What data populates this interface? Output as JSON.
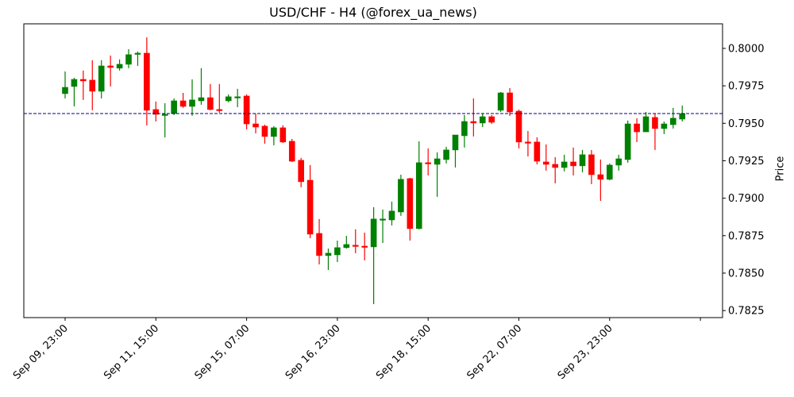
{
  "chart_data": {
    "type": "candlestick",
    "title": "USD/CHF - H4 (@forex_ua_news)",
    "xlabel": "",
    "ylabel": "Price",
    "ylim": [
      0.78203,
      0.80164
    ],
    "y_ticks": [
      "0.7825",
      "0.7850",
      "0.7875",
      "0.7900",
      "0.7925",
      "0.7950",
      "0.7975",
      "0.8000"
    ],
    "x_ticks": [
      {
        "index": 0,
        "label": "Sep 09, 23:00"
      },
      {
        "index": 10,
        "label": "Sep 11, 15:00"
      },
      {
        "index": 20,
        "label": "Sep 15, 07:00"
      },
      {
        "index": 30,
        "label": "Sep 16, 23:00"
      },
      {
        "index": 40,
        "label": "Sep 18, 15:00"
      },
      {
        "index": 50,
        "label": "Sep 22, 07:00"
      },
      {
        "index": 60,
        "label": "Sep 23, 23:00"
      },
      {
        "index": 70,
        "label": ""
      }
    ],
    "y_axis_side": "right",
    "grid": false,
    "up_color": "#008000",
    "down_color": "#ff0000",
    "reference_line": {
      "value": 0.79565,
      "color": "#000080",
      "style": "dashed"
    },
    "ohlc_fields": [
      "open",
      "high",
      "low",
      "close"
    ],
    "candles": [
      [
        0.79698,
        0.79846,
        0.79666,
        0.7974
      ],
      [
        0.79746,
        0.79804,
        0.79613,
        0.79793
      ],
      [
        0.79793,
        0.79852,
        0.79656,
        0.79783
      ],
      [
        0.79788,
        0.79921,
        0.79587,
        0.79714
      ],
      [
        0.79714,
        0.79921,
        0.79666,
        0.79883
      ],
      [
        0.79883,
        0.79952,
        0.79746,
        0.79873
      ],
      [
        0.79868,
        0.79926,
        0.79852,
        0.79894
      ],
      [
        0.79894,
        0.79995,
        0.79868,
        0.79958
      ],
      [
        0.79963,
        0.79979,
        0.79883,
        0.79968
      ],
      [
        0.79968,
        0.80074,
        0.79486,
        0.79587
      ],
      [
        0.79592,
        0.79645,
        0.79512,
        0.7956
      ],
      [
        0.79555,
        0.79634,
        0.79406,
        0.7956
      ],
      [
        0.79565,
        0.79666,
        0.79555,
        0.7965
      ],
      [
        0.7965,
        0.79703,
        0.79603,
        0.79613
      ],
      [
        0.79613,
        0.79793,
        0.7955,
        0.79656
      ],
      [
        0.7965,
        0.79868,
        0.79624,
        0.79671
      ],
      [
        0.79671,
        0.79762,
        0.79587,
        0.79592
      ],
      [
        0.79592,
        0.79762,
        0.79571,
        0.79587
      ],
      [
        0.7965,
        0.79693,
        0.7964,
        0.79677
      ],
      [
        0.79671,
        0.7973,
        0.79608,
        0.79677
      ],
      [
        0.79682,
        0.79693,
        0.79459,
        0.79496
      ],
      [
        0.79496,
        0.79565,
        0.79433,
        0.79475
      ],
      [
        0.79481,
        0.79491,
        0.79364,
        0.79412
      ],
      [
        0.79412,
        0.79481,
        0.79353,
        0.7947
      ],
      [
        0.7947,
        0.79486,
        0.79369,
        0.79375
      ],
      [
        0.7938,
        0.79396,
        0.79242,
        0.79247
      ],
      [
        0.79253,
        0.79269,
        0.79073,
        0.7911
      ],
      [
        0.7912,
        0.79221,
        0.78733,
        0.7876
      ],
      [
        0.78765,
        0.78861,
        0.78558,
        0.78617
      ],
      [
        0.78617,
        0.78664,
        0.78521,
        0.78633
      ],
      [
        0.78622,
        0.78717,
        0.78574,
        0.7867
      ],
      [
        0.7867,
        0.78749,
        0.78664,
        0.78691
      ],
      [
        0.78686,
        0.78792,
        0.78633,
        0.7868
      ],
      [
        0.7868,
        0.7877,
        0.78585,
        0.78675
      ],
      [
        0.78675,
        0.7894,
        0.78293,
        0.78861
      ],
      [
        0.78855,
        0.78924,
        0.78701,
        0.78861
      ],
      [
        0.78855,
        0.78977,
        0.78818,
        0.78914
      ],
      [
        0.78908,
        0.79157,
        0.78882,
        0.79126
      ],
      [
        0.79131,
        0.79136,
        0.78717,
        0.78797
      ],
      [
        0.78797,
        0.7938,
        0.78792,
        0.79237
      ],
      [
        0.79237,
        0.79332,
        0.79152,
        0.79232
      ],
      [
        0.79226,
        0.79306,
        0.79009,
        0.79263
      ],
      [
        0.79258,
        0.79343,
        0.79232,
        0.79322
      ],
      [
        0.79322,
        0.79422,
        0.79205,
        0.79422
      ],
      [
        0.79417,
        0.79555,
        0.79338,
        0.79512
      ],
      [
        0.79512,
        0.79666,
        0.79412,
        0.79502
      ],
      [
        0.79502,
        0.79565,
        0.79475,
        0.79544
      ],
      [
        0.79544,
        0.79555,
        0.79496,
        0.79507
      ],
      [
        0.79587,
        0.79709,
        0.79576,
        0.79703
      ],
      [
        0.79703,
        0.79735,
        0.7955,
        0.79576
      ],
      [
        0.79581,
        0.79592,
        0.79332,
        0.79375
      ],
      [
        0.79375,
        0.79449,
        0.79279,
        0.79369
      ],
      [
        0.79375,
        0.79406,
        0.79226,
        0.79247
      ],
      [
        0.79242,
        0.79359,
        0.79184,
        0.79226
      ],
      [
        0.79226,
        0.79274,
        0.79099,
        0.79205
      ],
      [
        0.79205,
        0.7929,
        0.79179,
        0.79242
      ],
      [
        0.79242,
        0.79338,
        0.79152,
        0.79216
      ],
      [
        0.79216,
        0.79322,
        0.79173,
        0.7929
      ],
      [
        0.7929,
        0.79322,
        0.79094,
        0.79157
      ],
      [
        0.79157,
        0.79258,
        0.78982,
        0.79126
      ],
      [
        0.79126,
        0.79232,
        0.7912,
        0.79221
      ],
      [
        0.79221,
        0.7929,
        0.79184,
        0.79263
      ],
      [
        0.79258,
        0.79518,
        0.79237,
        0.79496
      ],
      [
        0.79496,
        0.79534,
        0.79375,
        0.79443
      ],
      [
        0.79443,
        0.79576,
        0.79443,
        0.79544
      ],
      [
        0.79539,
        0.79565,
        0.79322,
        0.79465
      ],
      [
        0.79465,
        0.79512,
        0.79428,
        0.79496
      ],
      [
        0.79491,
        0.79603,
        0.79465,
        0.79534
      ],
      [
        0.79528,
        0.79618,
        0.79512,
        0.79565
      ]
    ]
  }
}
